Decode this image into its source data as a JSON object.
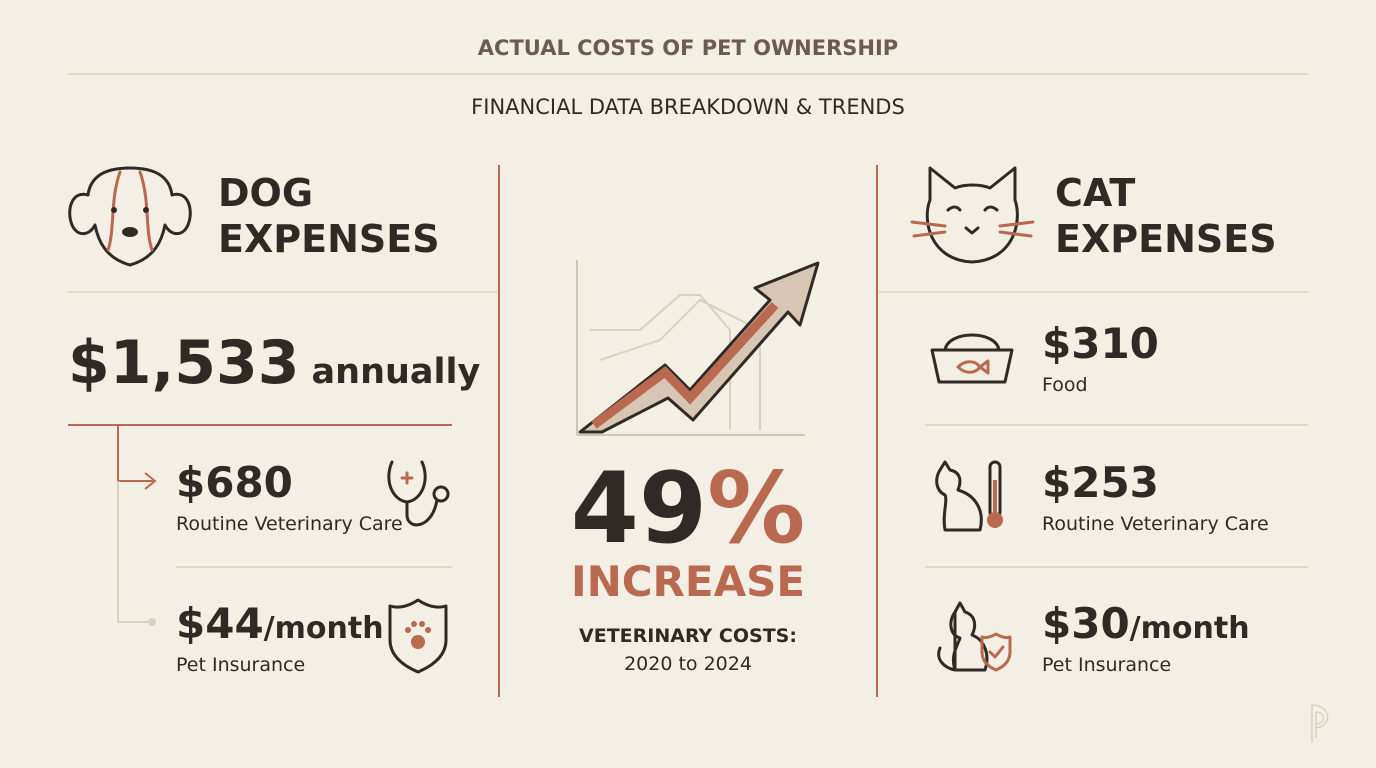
{
  "header": {
    "title": "ACTUAL COSTS OF PET OWNERSHIP",
    "subtitle": "FINANCIAL DATA BREAKDOWN & TRENDS"
  },
  "dog": {
    "title": [
      "DOG",
      "EXPENSES"
    ],
    "total": {
      "amount": "$1,533",
      "unit": "annually"
    },
    "items": [
      {
        "amount": "$680",
        "label": "Routine Veterinary Care"
      },
      {
        "amount": "$44",
        "unit": "/month",
        "label": "Pet Insurance"
      }
    ]
  },
  "center": {
    "number": "49",
    "sign": "%",
    "word": "INCREASE",
    "caption": "VETERINARY COSTS:",
    "period": "2020 to 2024"
  },
  "cat": {
    "title": [
      "CAT",
      "EXPENSES"
    ],
    "items": [
      {
        "amount": "$310",
        "label": "Food"
      },
      {
        "amount": "$253",
        "label": "Routine Veterinary Care"
      },
      {
        "amount": "$30",
        "unit": "/month",
        "label": "Pet Insurance"
      }
    ]
  }
}
